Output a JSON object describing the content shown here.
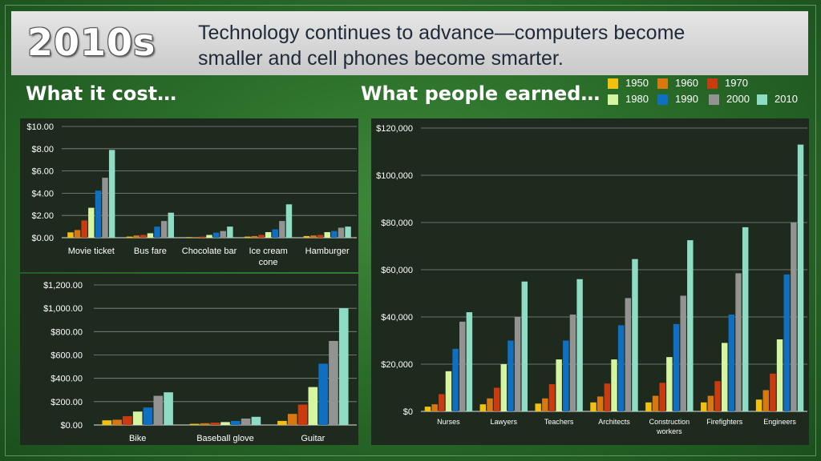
{
  "header": {
    "era": "2010s",
    "subtitle_line1": "Technology continues to advance—computers become",
    "subtitle_line2": "smaller and cell phones become smarter."
  },
  "sections": {
    "cost_title": "What it cost…",
    "earned_title": "What people earned…"
  },
  "legend": [
    {
      "year": "1950",
      "color": "#f2c10e"
    },
    {
      "year": "1960",
      "color": "#d9780f"
    },
    {
      "year": "1970",
      "color": "#cc3b10"
    },
    {
      "year": "1980",
      "color": "#d6f5a0"
    },
    {
      "year": "1990",
      "color": "#0f6fc2"
    },
    {
      "year": "2000",
      "color": "#939393"
    },
    {
      "year": "2010",
      "color": "#8fdcc4"
    }
  ],
  "chart_data": [
    {
      "type": "bar",
      "title": "",
      "categories": [
        "Movie ticket",
        "Bus fare",
        "Chocolate bar",
        "Ice cream cone",
        "Hamburger"
      ],
      "ylim": [
        0,
        10
      ],
      "yticks": [
        "$0.00",
        "$2.00",
        "$4.00",
        "$6.00",
        "$8.00",
        "$10.00"
      ],
      "grid": true,
      "series": [
        {
          "name": "1950",
          "values": [
            0.48,
            0.1,
            0.05,
            0.1,
            0.15
          ]
        },
        {
          "name": "1960",
          "values": [
            0.69,
            0.2,
            0.05,
            0.15,
            0.2
          ]
        },
        {
          "name": "1970",
          "values": [
            1.55,
            0.25,
            0.1,
            0.25,
            0.25
          ]
        },
        {
          "name": "1980",
          "values": [
            2.69,
            0.4,
            0.25,
            0.5,
            0.5
          ]
        },
        {
          "name": "1990",
          "values": [
            4.23,
            1.0,
            0.45,
            0.75,
            0.6
          ]
        },
        {
          "name": "2000",
          "values": [
            5.39,
            1.5,
            0.6,
            1.5,
            0.9
          ]
        },
        {
          "name": "2010",
          "values": [
            7.89,
            2.25,
            1.0,
            3.0,
            1.0
          ]
        }
      ]
    },
    {
      "type": "bar",
      "title": "",
      "categories": [
        "Bike",
        "Baseball glove",
        "Guitar"
      ],
      "ylim": [
        0,
        1200
      ],
      "yticks": [
        "$0.00",
        "$200.00",
        "$400.00",
        "$600.00",
        "$800.00",
        "$1,000.00",
        "$1,200.00"
      ],
      "grid": true,
      "series": [
        {
          "name": "1950",
          "values": [
            40,
            10,
            35
          ]
        },
        {
          "name": "1960",
          "values": [
            45,
            15,
            95
          ]
        },
        {
          "name": "1970",
          "values": [
            75,
            20,
            175
          ]
        },
        {
          "name": "1980",
          "values": [
            115,
            25,
            325
          ]
        },
        {
          "name": "1990",
          "values": [
            150,
            35,
            525
          ]
        },
        {
          "name": "2000",
          "values": [
            250,
            55,
            720
          ]
        },
        {
          "name": "2010",
          "values": [
            280,
            70,
            1000
          ]
        }
      ]
    },
    {
      "type": "bar",
      "title": "",
      "categories": [
        "Nurses",
        "Lawyers",
        "Teachers",
        "Architects",
        "Construction workers",
        "Firefighters",
        "Engineers"
      ],
      "ylim": [
        0,
        120000
      ],
      "yticks": [
        "$0",
        "$20,000",
        "$40,000",
        "$60,000",
        "$80,000",
        "$100,000",
        "$120,000"
      ],
      "grid": true,
      "series": [
        {
          "name": "1950",
          "values": [
            2000,
            3000,
            3300,
            3800,
            3800,
            3800,
            5000
          ]
        },
        {
          "name": "1960",
          "values": [
            3000,
            5500,
            5500,
            6300,
            6600,
            6600,
            9000
          ]
        },
        {
          "name": "1970",
          "values": [
            7300,
            10000,
            11500,
            11800,
            12100,
            12800,
            16000
          ]
        },
        {
          "name": "1980",
          "values": [
            17000,
            20000,
            22000,
            22000,
            23000,
            29000,
            30500
          ]
        },
        {
          "name": "1990",
          "values": [
            26500,
            30000,
            30000,
            36500,
            37000,
            41000,
            58000
          ]
        },
        {
          "name": "2000",
          "values": [
            38000,
            40000,
            41000,
            48000,
            49000,
            58500,
            80000
          ]
        },
        {
          "name": "2010",
          "values": [
            42000,
            55000,
            56000,
            64500,
            72500,
            78000,
            113000
          ]
        }
      ]
    }
  ]
}
